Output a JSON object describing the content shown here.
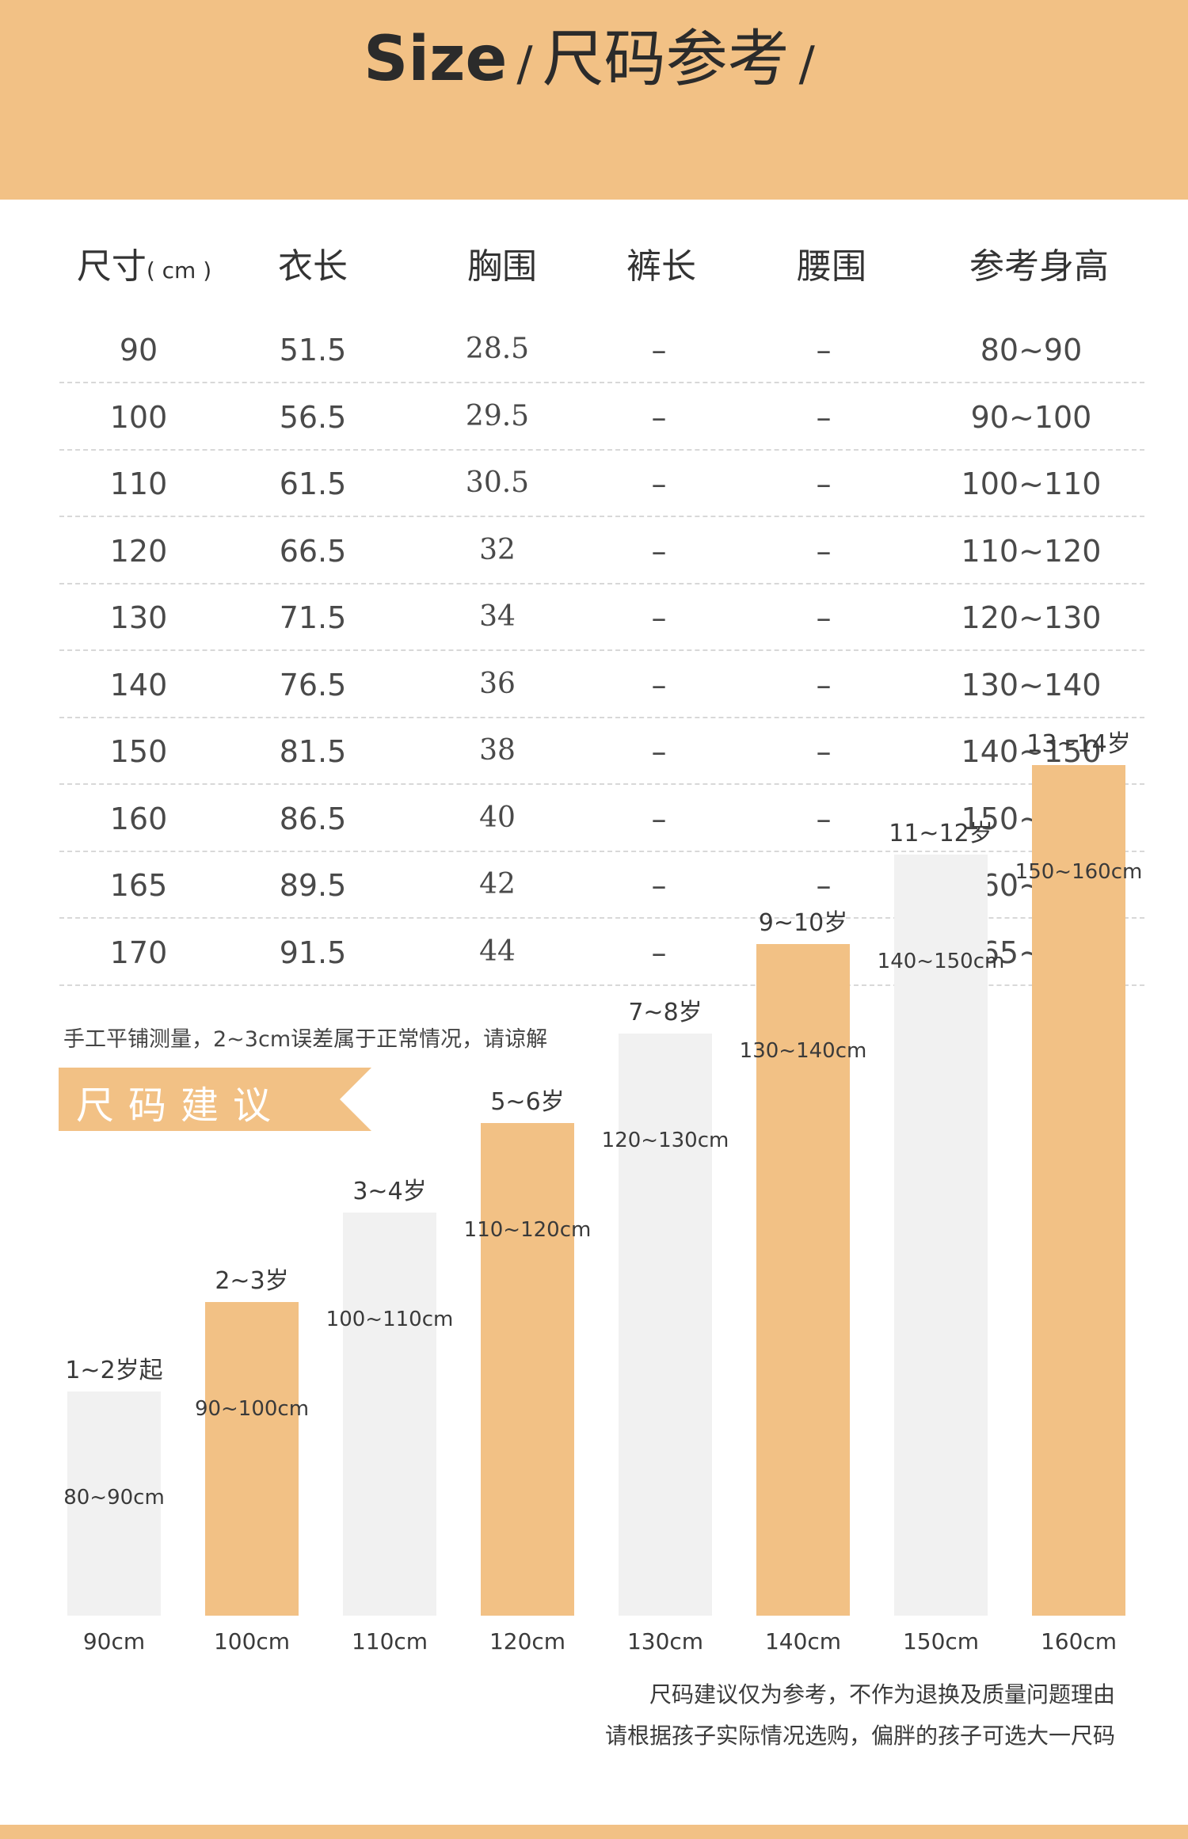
{
  "header": {
    "title_en": "Size",
    "slash": "/",
    "title_cn": "尺码参考",
    "slash_end": "/"
  },
  "table": {
    "headers": {
      "size": "尺寸",
      "size_unit": "( cm )",
      "length": "衣长",
      "chest": "胸围",
      "pants": "裤长",
      "waist": "腰围",
      "height": "参考身高"
    },
    "rows": [
      {
        "size": "90",
        "length": "51.5",
        "chest": "28.5",
        "pants": "–",
        "waist": "–",
        "height": "80~90"
      },
      {
        "size": "100",
        "length": "56.5",
        "chest": "29.5",
        "pants": "–",
        "waist": "–",
        "height": "90~100"
      },
      {
        "size": "110",
        "length": "61.5",
        "chest": "30.5",
        "pants": "–",
        "waist": "–",
        "height": "100~110"
      },
      {
        "size": "120",
        "length": "66.5",
        "chest": "32",
        "pants": "–",
        "waist": "–",
        "height": "110~120"
      },
      {
        "size": "130",
        "length": "71.5",
        "chest": "34",
        "pants": "–",
        "waist": "–",
        "height": "120~130"
      },
      {
        "size": "140",
        "length": "76.5",
        "chest": "36",
        "pants": "–",
        "waist": "–",
        "height": "130~140"
      },
      {
        "size": "150",
        "length": "81.5",
        "chest": "38",
        "pants": "–",
        "waist": "–",
        "height": "140~150"
      },
      {
        "size": "160",
        "length": "86.5",
        "chest": "40",
        "pants": "–",
        "waist": "–",
        "height": "150~160"
      },
      {
        "size": "165",
        "length": "89.5",
        "chest": "42",
        "pants": "–",
        "waist": "–",
        "height": "160~165"
      },
      {
        "size": "170",
        "length": "91.5",
        "chest": "44",
        "pants": "–",
        "waist": "–",
        "height": "165~170"
      }
    ],
    "note": "手工平铺测量，2~3cm误差属于正常情况，请谅解"
  },
  "section": {
    "title": "尺码建议"
  },
  "chart_data": {
    "type": "bar",
    "categories": [
      "90cm",
      "100cm",
      "110cm",
      "120cm",
      "130cm",
      "140cm",
      "150cm",
      "160cm"
    ],
    "values": [
      85,
      95,
      105,
      115,
      125,
      135,
      145,
      155
    ],
    "height_ranges": [
      "80~90cm",
      "90~100cm",
      "100~110cm",
      "110~120cm",
      "120~130cm",
      "130~140cm",
      "140~150cm",
      "150~160cm"
    ],
    "age_labels": [
      "1~2岁起",
      "2~3岁",
      "3~4岁",
      "5~6岁",
      "7~8岁",
      "9~10岁",
      "11~12岁",
      "13~14岁"
    ],
    "bar_colors": [
      "#f1f1f1",
      "#f2c185"
    ],
    "title": "尺码建议",
    "xlabel": "",
    "ylabel": ""
  },
  "footnotes": [
    "尺码建议仅为参考，不作为退换及质量问题理由",
    "请根据孩子实际情况选购，偏胖的孩子可选大一尺码"
  ],
  "colors": {
    "accent": "#f2c185",
    "light_bar": "#f1f1f1",
    "text": "#3a3a3a"
  }
}
